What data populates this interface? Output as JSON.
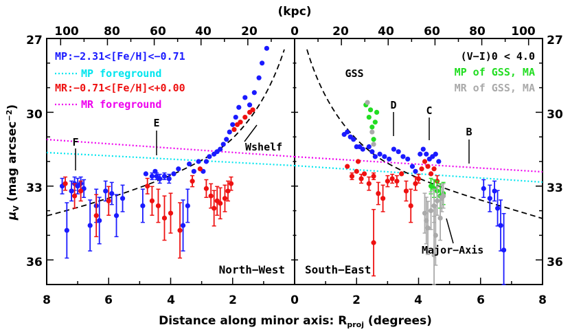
{
  "chart_data": {
    "type": "scatter",
    "xlabel_main": "Distance along minor axis: R",
    "xlabel_sub": "proj",
    "xlabel_tail": " (degrees)",
    "x2label": "(kpc)",
    "ylabel_main": "μ",
    "ylabel_sub": "V",
    "ylabel_tail": " (mag arcsec",
    "ylabel_sup": "−2",
    "ylabel_close": ")",
    "ylim": [
      37,
      27
    ],
    "bottom_ticks_left": [
      "8",
      "6",
      "4",
      "2",
      "0"
    ],
    "bottom_ticks_right": [
      "2",
      "4",
      "6",
      "8"
    ],
    "top_ticks_left": [
      "100",
      "80",
      "60",
      "40",
      "20",
      "0"
    ],
    "top_ticks_right": [
      "20",
      "40",
      "60",
      "80",
      "100"
    ],
    "y_ticks": [
      "27",
      "30",
      "33",
      "36"
    ],
    "legend_left": [
      {
        "label": "MP:−2.31<[Fe/H]<−0.71",
        "color": "#1a1aff"
      },
      {
        "label": "MP foreground",
        "color": "#00e5ee",
        "dotted": true
      },
      {
        "label": "MR:−0.71<[Fe/H]<+0.00",
        "color": "#ee1111"
      },
      {
        "label": "MR foreground",
        "color": "#ee00ee",
        "dotted": true
      }
    ],
    "legend_right": [
      {
        "label": "(V−I)0 < 4.0",
        "color": "#000000"
      },
      {
        "label": "MP of GSS, MA",
        "color": "#22dd22"
      },
      {
        "label": "MR of GSS, MA",
        "color": "#aaaaaa"
      }
    ],
    "annotations": [
      "F",
      "E",
      "Wshelf",
      "GSS",
      "D",
      "C",
      "B",
      "Major−Axis"
    ],
    "panels": [
      "North−West",
      "South−East"
    ],
    "series": [
      {
        "name": "MP NW",
        "color": "#1a1aff",
        "side": "NW",
        "points": [
          [
            7.5,
            33.0
          ],
          [
            7.35,
            34.8
          ],
          [
            7.2,
            33.2
          ],
          [
            7.1,
            32.9
          ],
          [
            7.0,
            33.0
          ],
          [
            6.9,
            32.9
          ],
          [
            6.8,
            33.1
          ],
          [
            6.6,
            34.6
          ],
          [
            6.4,
            33.8
          ],
          [
            6.3,
            34.4
          ],
          [
            6.1,
            33.2
          ],
          [
            5.9,
            33.3
          ],
          [
            5.75,
            34.2
          ],
          [
            5.55,
            33.5
          ],
          [
            4.9,
            33.8
          ],
          [
            4.8,
            32.5
          ],
          [
            4.6,
            32.6
          ],
          [
            4.5,
            32.4
          ],
          [
            4.45,
            32.6
          ],
          [
            4.35,
            32.7
          ],
          [
            4.2,
            32.6
          ],
          [
            4.05,
            32.7
          ],
          [
            3.9,
            32.5
          ],
          [
            3.75,
            32.3
          ],
          [
            3.6,
            34.6
          ],
          [
            3.45,
            33.8
          ],
          [
            3.4,
            32.1
          ],
          [
            3.25,
            32.4
          ],
          [
            3.1,
            32.0
          ],
          [
            2.95,
            32.4
          ],
          [
            2.85,
            32.0
          ],
          [
            2.75,
            31.8
          ],
          [
            2.6,
            31.7
          ],
          [
            2.5,
            31.6
          ],
          [
            2.4,
            31.5
          ],
          [
            2.3,
            31.3
          ],
          [
            2.2,
            31.1
          ],
          [
            2.1,
            30.8
          ],
          [
            2.0,
            30.5
          ],
          [
            1.9,
            30.2
          ],
          [
            1.8,
            29.8
          ],
          [
            1.6,
            29.4
          ],
          [
            1.45,
            29.7
          ],
          [
            1.3,
            29.2
          ],
          [
            1.15,
            28.6
          ],
          [
            1.05,
            28.0
          ],
          [
            0.9,
            27.4
          ]
        ]
      },
      {
        "name": "MR NW",
        "color": "#ee1111",
        "side": "NW",
        "points": [
          [
            7.4,
            32.9
          ],
          [
            7.1,
            33.4
          ],
          [
            6.9,
            33.2
          ],
          [
            6.4,
            34.2
          ],
          [
            6.0,
            33.6
          ],
          [
            4.75,
            33.0
          ],
          [
            4.6,
            33.6
          ],
          [
            4.4,
            33.8
          ],
          [
            4.2,
            34.3
          ],
          [
            4.0,
            34.1
          ],
          [
            3.7,
            34.8
          ],
          [
            3.3,
            32.8
          ],
          [
            3.05,
            32.3
          ],
          [
            2.85,
            33.1
          ],
          [
            2.7,
            33.4
          ],
          [
            2.6,
            33.9
          ],
          [
            2.5,
            33.6
          ],
          [
            2.4,
            33.7
          ],
          [
            2.25,
            33.5
          ],
          [
            2.15,
            33.2
          ],
          [
            2.05,
            32.9
          ],
          [
            1.95,
            30.7
          ],
          [
            1.85,
            30.5
          ],
          [
            1.75,
            30.4
          ],
          [
            1.6,
            30.2
          ],
          [
            1.45,
            30.0
          ],
          [
            1.35,
            29.9
          ]
        ]
      },
      {
        "name": "MP SE",
        "color": "#1a1aff",
        "side": "SE",
        "points": [
          [
            1.6,
            30.9
          ],
          [
            1.7,
            30.8
          ],
          [
            1.8,
            31.0
          ],
          [
            1.9,
            31.1
          ],
          [
            2.0,
            31.4
          ],
          [
            2.1,
            31.4
          ],
          [
            2.2,
            31.5
          ],
          [
            2.4,
            31.4
          ],
          [
            2.5,
            31.6
          ],
          [
            2.6,
            31.8
          ],
          [
            2.75,
            31.7
          ],
          [
            2.9,
            31.8
          ],
          [
            3.05,
            31.9
          ],
          [
            3.2,
            31.5
          ],
          [
            3.35,
            31.6
          ],
          [
            3.5,
            31.8
          ],
          [
            3.65,
            31.9
          ],
          [
            3.8,
            32.2
          ],
          [
            3.9,
            32.4
          ],
          [
            4.05,
            31.7
          ],
          [
            4.15,
            31.5
          ],
          [
            4.25,
            31.7
          ],
          [
            4.35,
            31.9
          ],
          [
            4.45,
            31.8
          ],
          [
            4.55,
            31.7
          ],
          [
            4.65,
            32.0
          ],
          [
            6.1,
            33.1
          ],
          [
            6.3,
            33.5
          ],
          [
            6.45,
            33.2
          ],
          [
            6.55,
            33.9
          ],
          [
            6.65,
            34.6
          ],
          [
            6.75,
            35.6
          ]
        ]
      },
      {
        "name": "MR SE",
        "color": "#ee1111",
        "side": "SE",
        "points": [
          [
            1.7,
            32.2
          ],
          [
            1.85,
            32.6
          ],
          [
            2.0,
            32.4
          ],
          [
            2.15,
            32.7
          ],
          [
            2.25,
            32.5
          ],
          [
            2.4,
            32.9
          ],
          [
            2.55,
            32.6
          ],
          [
            2.7,
            33.3
          ],
          [
            2.85,
            33.5
          ],
          [
            3.0,
            32.8
          ],
          [
            3.15,
            32.7
          ],
          [
            3.3,
            32.8
          ],
          [
            3.45,
            32.5
          ],
          [
            3.6,
            33.2
          ],
          [
            3.75,
            33.8
          ],
          [
            3.9,
            32.9
          ],
          [
            4.0,
            32.7
          ],
          [
            4.1,
            32.3
          ],
          [
            4.2,
            32.0
          ],
          [
            4.3,
            32.2
          ],
          [
            4.4,
            32.5
          ],
          [
            4.5,
            32.3
          ],
          [
            4.6,
            32.8
          ],
          [
            2.05,
            32.0
          ],
          [
            2.55,
            35.3
          ]
        ]
      },
      {
        "name": "MP GSS",
        "color": "#22dd22",
        "side": "SE",
        "points": [
          [
            2.3,
            29.7
          ],
          [
            2.4,
            30.2
          ],
          [
            2.45,
            29.9
          ],
          [
            2.5,
            30.6
          ],
          [
            2.55,
            31.1
          ],
          [
            2.6,
            30.4
          ],
          [
            2.65,
            30.0
          ],
          [
            4.4,
            33.0
          ],
          [
            4.5,
            33.1
          ],
          [
            4.6,
            33.2
          ],
          [
            4.7,
            33.4
          ],
          [
            4.8,
            33.3
          ]
        ]
      },
      {
        "name": "MR GSS",
        "color": "#aaaaaa",
        "side": "SE",
        "points": [
          [
            2.35,
            29.6
          ],
          [
            2.5,
            30.8
          ],
          [
            2.55,
            31.3
          ],
          [
            4.2,
            34.1
          ],
          [
            4.25,
            34.4
          ],
          [
            4.3,
            34.7
          ],
          [
            4.4,
            34.0
          ],
          [
            4.5,
            33.8
          ],
          [
            4.55,
            35.0
          ],
          [
            4.6,
            33.6
          ],
          [
            4.7,
            34.3
          ],
          [
            4.75,
            33.5
          ],
          [
            4.8,
            33.4
          ],
          [
            4.5,
            35.8
          ]
        ]
      }
    ]
  }
}
